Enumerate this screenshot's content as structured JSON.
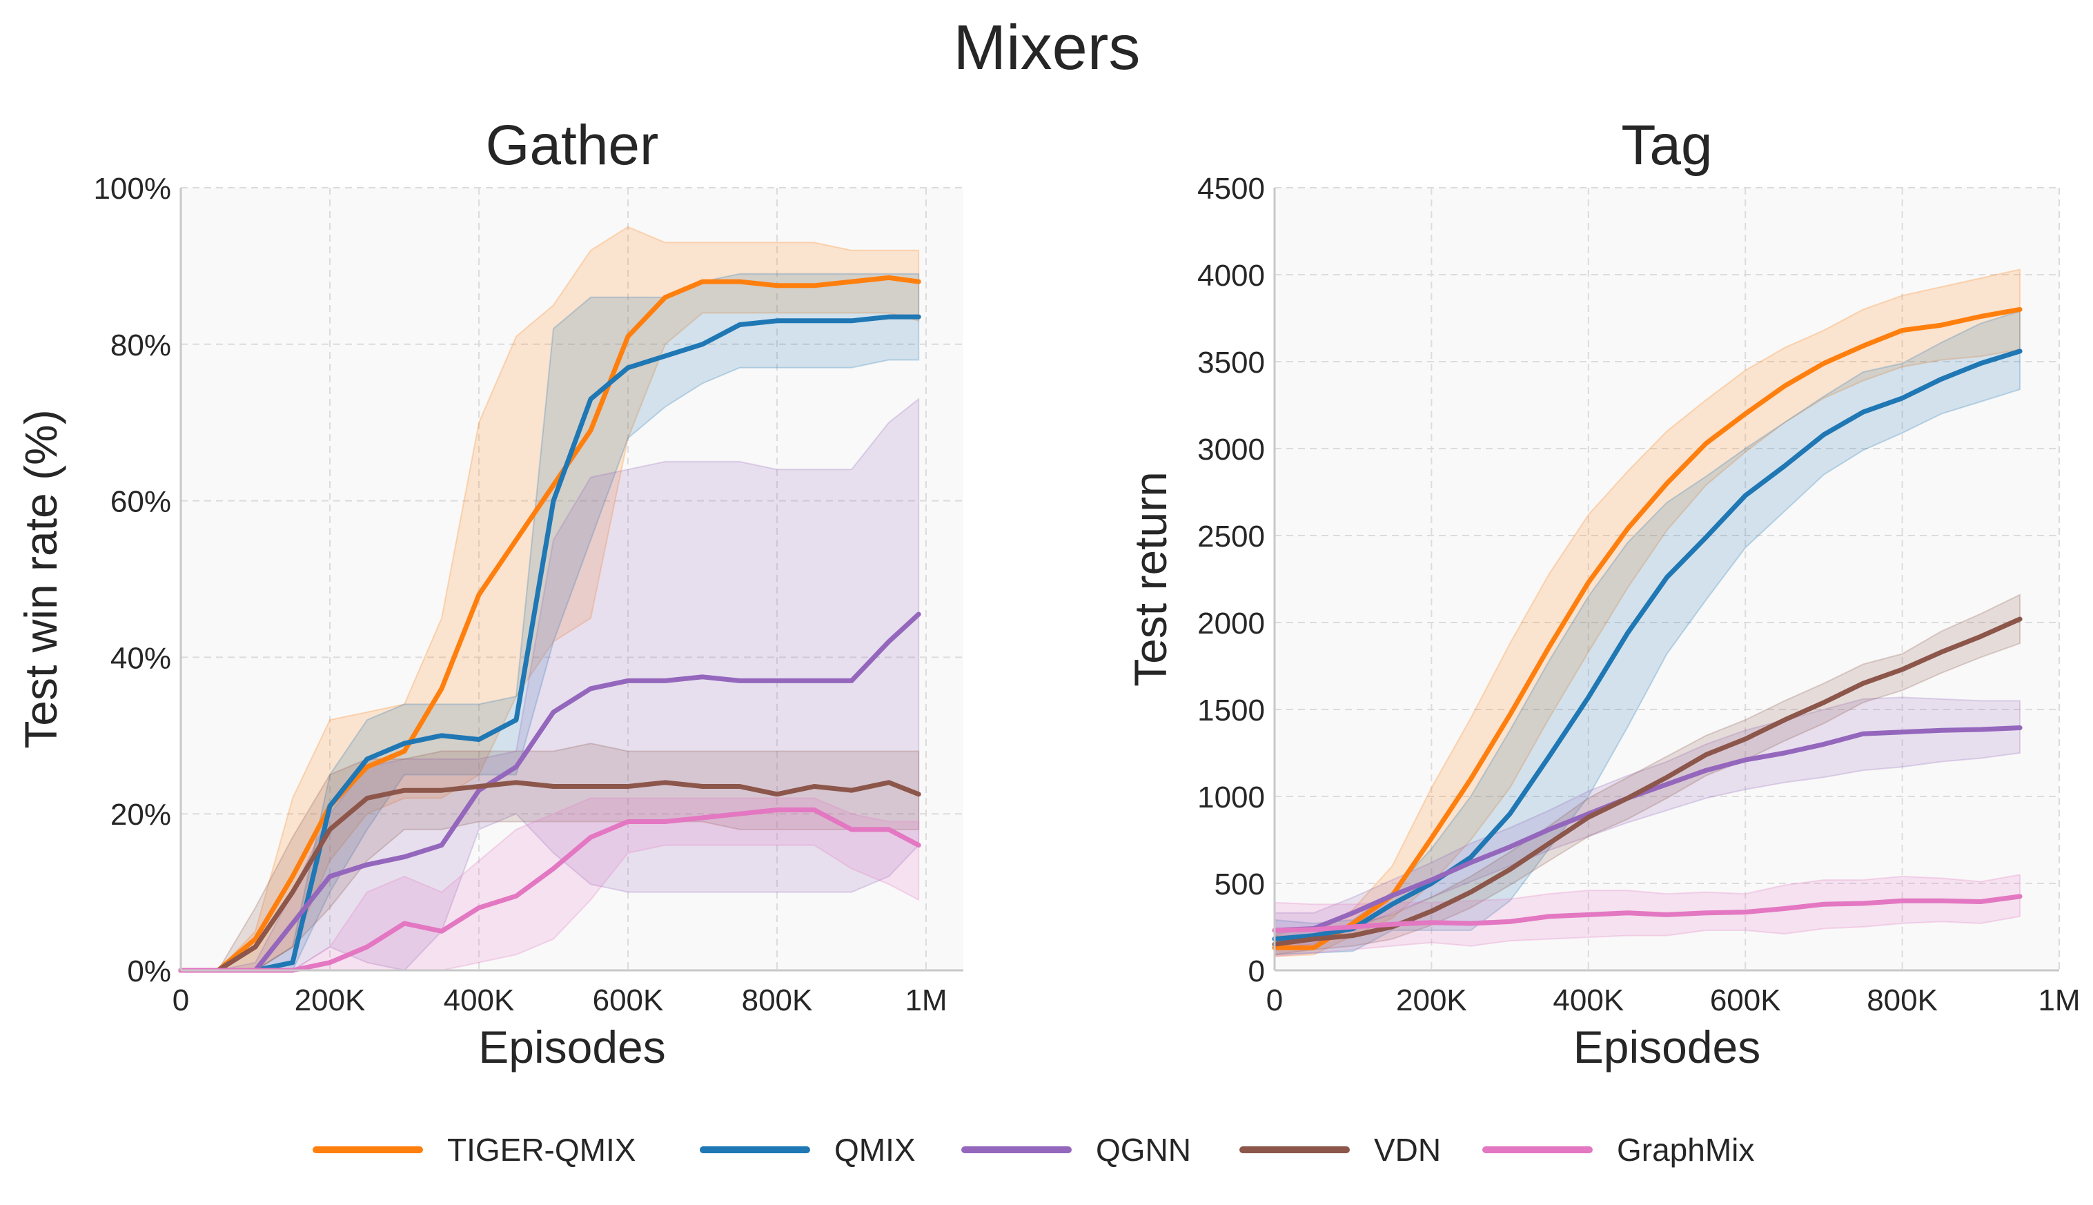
{
  "figure": {
    "title": "Mixers",
    "colors": {
      "TIGER-QMIX": "#ff7f0e",
      "QMIX": "#1f77b4",
      "QGNN": "#9467bd",
      "VDN": "#8c564b",
      "GraphMix": "#e377c2"
    },
    "legend": {
      "placement": "bottom-center",
      "entries": [
        "TIGER-QMIX",
        "QMIX",
        "QGNN",
        "VDN",
        "GraphMix"
      ]
    }
  },
  "chart_data": [
    {
      "type": "line",
      "title": "Gather",
      "xlabel": "Episodes",
      "ylabel": "Test win rate (%)",
      "xlim": [
        0,
        1050000
      ],
      "ylim": [
        0,
        100
      ],
      "grid": true,
      "bands": "shaded min-max / confidence band per series",
      "xticks": [
        0,
        200000,
        400000,
        600000,
        800000,
        1000000
      ],
      "xtick_labels": [
        "0",
        "200K",
        "400K",
        "600K",
        "800K",
        "1M"
      ],
      "yticks": [
        0,
        20,
        40,
        60,
        80,
        100
      ],
      "ytick_labels": [
        "0%",
        "20%",
        "40%",
        "60%",
        "80%",
        "100%"
      ],
      "x": [
        0,
        50000,
        100000,
        150000,
        200000,
        250000,
        300000,
        350000,
        400000,
        450000,
        500000,
        550000,
        600000,
        650000,
        700000,
        750000,
        800000,
        850000,
        900000,
        950000,
        990000
      ],
      "series": [
        {
          "name": "TIGER-QMIX",
          "mean": [
            0,
            0,
            4,
            12,
            21,
            26,
            28,
            36,
            48,
            55,
            62,
            69,
            81,
            86,
            88,
            88,
            87.5,
            87.5,
            88,
            88.5,
            88
          ],
          "lower": [
            0,
            0,
            0,
            3,
            14,
            20,
            22,
            22,
            25,
            35,
            42,
            45,
            68,
            80,
            84,
            84,
            84,
            84,
            84,
            84,
            83
          ],
          "upper": [
            0,
            0,
            5,
            22,
            32,
            33,
            34,
            45,
            70,
            81,
            85,
            92,
            95,
            93,
            93,
            93,
            93,
            93,
            92,
            92,
            92
          ]
        },
        {
          "name": "QMIX",
          "mean": [
            0,
            0,
            0,
            1,
            21,
            27,
            29,
            30,
            29.5,
            32,
            60,
            73,
            77,
            78.5,
            80,
            82.5,
            83,
            83,
            83,
            83.5,
            83.5
          ],
          "lower": [
            0,
            0,
            0,
            0,
            10,
            18,
            25,
            25,
            25,
            25,
            42,
            55,
            68,
            72,
            75,
            77,
            77,
            77,
            77,
            78,
            78
          ],
          "upper": [
            0,
            0,
            0,
            3,
            25,
            32,
            34,
            34,
            34,
            35,
            82,
            86,
            86,
            86,
            88,
            89,
            89,
            89,
            89,
            89,
            89
          ]
        },
        {
          "name": "QGNN",
          "mean": [
            0,
            0,
            0,
            6,
            12,
            13.5,
            14.5,
            16,
            23,
            26,
            33,
            36,
            37,
            37,
            37.5,
            37,
            37,
            37,
            37,
            42,
            45.5
          ],
          "lower": [
            0,
            0,
            0,
            0,
            3,
            1,
            0,
            5,
            18,
            20,
            15,
            11,
            10,
            10,
            10,
            10,
            10,
            10,
            10,
            12,
            16
          ],
          "upper": [
            0,
            0,
            1,
            10,
            20,
            26,
            27,
            27,
            27,
            28,
            55,
            63,
            64,
            65,
            65,
            65,
            64,
            64,
            64,
            70,
            73
          ]
        },
        {
          "name": "VDN",
          "mean": [
            0,
            0,
            3,
            10,
            18,
            22,
            23,
            23,
            23.5,
            24,
            23.5,
            23.5,
            23.5,
            24,
            23.5,
            23.5,
            22.5,
            23.5,
            23,
            24,
            22.5
          ],
          "lower": [
            0,
            0,
            0,
            3,
            8,
            14,
            18,
            18,
            19,
            19,
            19,
            19,
            19,
            19,
            19,
            18,
            18,
            18,
            18,
            18,
            18
          ],
          "upper": [
            0,
            0,
            8,
            17,
            25,
            27,
            27,
            28,
            28,
            28,
            28,
            29,
            28,
            28,
            28,
            28,
            28,
            28,
            28,
            28,
            28
          ]
        },
        {
          "name": "GraphMix",
          "mean": [
            0,
            0,
            0,
            0,
            1,
            3,
            6,
            5,
            8,
            9.5,
            13,
            17,
            19,
            19,
            19.5,
            20,
            20.5,
            20.5,
            18,
            18,
            16
          ],
          "lower": [
            0,
            0,
            0,
            0,
            0,
            0,
            0,
            0,
            1,
            2,
            4,
            9,
            15,
            16,
            16,
            16,
            16,
            16,
            13,
            11,
            9
          ],
          "upper": [
            0,
            0,
            0,
            0,
            3,
            10,
            12,
            10,
            14,
            18,
            20,
            22,
            22,
            22,
            22,
            22,
            22,
            22,
            20,
            19,
            19
          ]
        }
      ]
    },
    {
      "type": "line",
      "title": "Tag",
      "xlabel": "Episodes",
      "ylabel": "Test return",
      "xlim": [
        0,
        1000000
      ],
      "ylim": [
        0,
        4500
      ],
      "grid": true,
      "xticks": [
        0,
        200000,
        400000,
        600000,
        800000,
        1000000
      ],
      "xtick_labels": [
        "0",
        "200K",
        "400K",
        "600K",
        "800K",
        "1M"
      ],
      "yticks": [
        0,
        500,
        1000,
        1500,
        2000,
        2500,
        3000,
        3500,
        4000,
        4500
      ],
      "ytick_labels": [
        "0",
        "500",
        "1000",
        "1500",
        "2000",
        "2500",
        "3000",
        "3500",
        "4000",
        "4500"
      ],
      "x": [
        0,
        50000,
        100000,
        150000,
        200000,
        250000,
        300000,
        350000,
        400000,
        450000,
        500000,
        550000,
        600000,
        650000,
        700000,
        750000,
        800000,
        850000,
        900000,
        950000
      ],
      "series": [
        {
          "name": "TIGER-QMIX",
          "mean": [
            130,
            130,
            270,
            430,
            760,
            1100,
            1470,
            1860,
            2230,
            2540,
            2800,
            3030,
            3200,
            3360,
            3490,
            3590,
            3680,
            3710,
            3760,
            3800
          ],
          "lower": [
            80,
            90,
            200,
            300,
            500,
            750,
            1050,
            1450,
            1830,
            2200,
            2530,
            2790,
            2980,
            3150,
            3290,
            3390,
            3470,
            3510,
            3530,
            3570
          ],
          "upper": [
            200,
            200,
            350,
            600,
            1050,
            1450,
            1880,
            2280,
            2620,
            2870,
            3100,
            3280,
            3450,
            3580,
            3680,
            3800,
            3880,
            3930,
            3980,
            4030
          ]
        },
        {
          "name": "QMIX",
          "mean": [
            180,
            200,
            240,
            380,
            500,
            650,
            900,
            1230,
            1570,
            1940,
            2260,
            2490,
            2730,
            2900,
            3080,
            3210,
            3290,
            3400,
            3490,
            3560
          ],
          "lower": [
            90,
            100,
            110,
            230,
            230,
            230,
            400,
            700,
            1000,
            1400,
            1820,
            2130,
            2430,
            2640,
            2850,
            2990,
            3090,
            3200,
            3270,
            3340
          ],
          "upper": [
            290,
            270,
            290,
            450,
            700,
            1000,
            1380,
            1780,
            2150,
            2460,
            2690,
            2840,
            3000,
            3150,
            3300,
            3440,
            3490,
            3610,
            3720,
            3790
          ]
        },
        {
          "name": "QGNN",
          "mean": [
            230,
            240,
            330,
            430,
            520,
            620,
            710,
            810,
            900,
            990,
            1070,
            1150,
            1210,
            1250,
            1300,
            1360,
            1370,
            1380,
            1385,
            1395
          ],
          "lower": [
            130,
            150,
            240,
            330,
            420,
            510,
            600,
            690,
            770,
            850,
            920,
            990,
            1040,
            1080,
            1110,
            1150,
            1170,
            1200,
            1220,
            1250
          ],
          "upper": [
            330,
            330,
            420,
            520,
            620,
            730,
            820,
            920,
            1030,
            1120,
            1200,
            1300,
            1380,
            1440,
            1500,
            1560,
            1570,
            1560,
            1550,
            1550
          ]
        },
        {
          "name": "VDN",
          "mean": [
            150,
            180,
            200,
            250,
            340,
            450,
            580,
            730,
            880,
            990,
            1110,
            1240,
            1330,
            1440,
            1540,
            1650,
            1730,
            1830,
            1920,
            2020
          ],
          "lower": [
            90,
            120,
            140,
            180,
            260,
            360,
            490,
            630,
            770,
            870,
            990,
            1120,
            1210,
            1320,
            1420,
            1540,
            1610,
            1710,
            1800,
            1880
          ],
          "upper": [
            210,
            240,
            260,
            320,
            420,
            540,
            680,
            830,
            990,
            1110,
            1230,
            1350,
            1440,
            1550,
            1650,
            1760,
            1820,
            1950,
            2050,
            2160
          ]
        },
        {
          "name": "GraphMix",
          "mean": [
            230,
            235,
            250,
            265,
            275,
            270,
            280,
            310,
            320,
            330,
            320,
            330,
            335,
            355,
            380,
            385,
            400,
            400,
            395,
            425
          ],
          "lower": [
            80,
            100,
            120,
            140,
            160,
            140,
            170,
            180,
            190,
            200,
            200,
            230,
            230,
            210,
            240,
            250,
            270,
            280,
            270,
            310
          ],
          "upper": [
            390,
            380,
            380,
            390,
            390,
            400,
            410,
            440,
            460,
            460,
            440,
            450,
            440,
            490,
            520,
            520,
            540,
            530,
            510,
            550
          ]
        }
      ]
    }
  ]
}
